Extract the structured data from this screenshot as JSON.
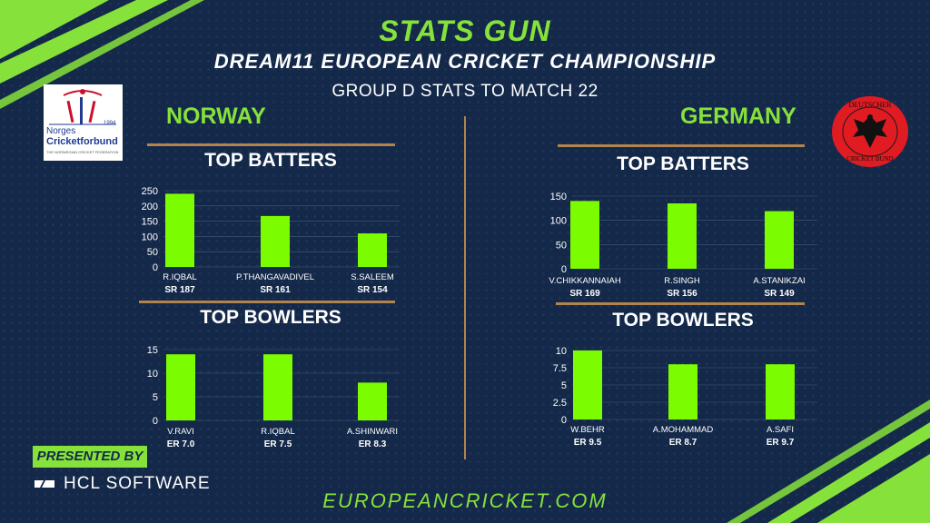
{
  "header": {
    "brand": "STATS GUN",
    "championship": "DREAM11 EUROPEAN CRICKET CHAMPIONSHIP",
    "subtitle": "GROUP D STATS TO MATCH 22"
  },
  "teams": {
    "left": {
      "name": "NORWAY",
      "logo_text_top": "Norges",
      "logo_text_main": "Cricketforbund",
      "logo_text_small": "THE NORWEGIAN CRICKET FEDERATION",
      "logo_year": "1994"
    },
    "right": {
      "name": "GERMANY",
      "logo_text_top": "DEUTSCHER",
      "logo_text_bottom": "CRICKET BUND"
    }
  },
  "labels": {
    "top_batters": "TOP BATTERS",
    "top_bowlers": "TOP BOWLERS"
  },
  "footer": {
    "presented_by": "PRESENTED BY",
    "sponsor": "HCL SOFTWARE",
    "website": "EUROPEANCRICKET.COM"
  },
  "colors": {
    "background": "#14294a",
    "accent_green": "#86e23a",
    "bar_green": "#7cfc00",
    "rule_tan": "#b3844e",
    "text_white": "#ffffff",
    "germany_red": "#e11b22"
  },
  "chart_data": [
    {
      "id": "norway_batters",
      "type": "bar",
      "title": "TOP BATTERS",
      "categories": [
        "R.IQBAL",
        "P.THANGAVADIVEL",
        "S.SALEEM"
      ],
      "sublabels": [
        "SR 187",
        "SR 161",
        "SR 154"
      ],
      "values": [
        240,
        167,
        110
      ],
      "ylim": [
        0,
        250
      ],
      "ticks": [
        0,
        50,
        100,
        150,
        200,
        250
      ],
      "grid": true
    },
    {
      "id": "norway_bowlers",
      "type": "bar",
      "title": "TOP BOWLERS",
      "categories": [
        "V.RAVI",
        "R.IQBAL",
        "A.SHINWARI"
      ],
      "sublabels": [
        "ER 7.0",
        "ER 7.5",
        "ER 8.3"
      ],
      "values": [
        14,
        14,
        8
      ],
      "ylim": [
        0,
        15
      ],
      "ticks": [
        0,
        5,
        10,
        15
      ],
      "grid": true
    },
    {
      "id": "germany_batters",
      "type": "bar",
      "title": "TOP BATTERS",
      "categories": [
        "V.CHIKKANNAIAH",
        "R.SINGH",
        "A.STANIKZAI"
      ],
      "sublabels": [
        "SR 169",
        "SR 156",
        "SR 149"
      ],
      "values": [
        140,
        135,
        119
      ],
      "ylim": [
        0,
        150
      ],
      "ticks": [
        0,
        50,
        100,
        150
      ],
      "grid": true
    },
    {
      "id": "germany_bowlers",
      "type": "bar",
      "title": "TOP BOWLERS",
      "categories": [
        "W.BEHR",
        "A.MOHAMMAD",
        "A.SAFI"
      ],
      "sublabels": [
        "ER 9.5",
        "ER 8.7",
        "ER 9.7"
      ],
      "values": [
        10,
        8,
        8
      ],
      "ylim": [
        0,
        10
      ],
      "ticks": [
        0,
        2.5,
        5,
        7.5,
        10
      ],
      "grid": true
    }
  ]
}
